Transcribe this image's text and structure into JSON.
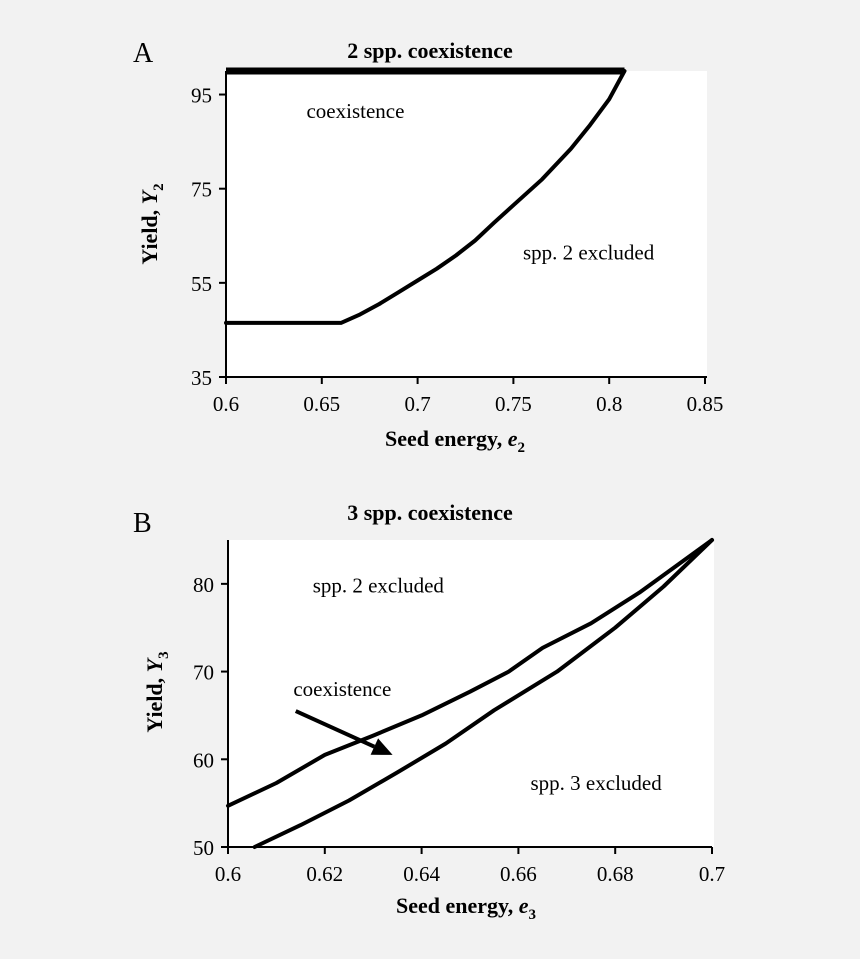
{
  "chart_data": [
    {
      "type": "line",
      "panel_label": "A",
      "title": "2 spp. coexistence",
      "xlabel": "Seed energy, ",
      "xlabel_var": "e",
      "xlabel_sub": "2",
      "ylabel": "Yield, ",
      "ylabel_var": "Y",
      "ylabel_sub": "2",
      "xlim": [
        0.6,
        0.85
      ],
      "ylim": [
        35,
        100
      ],
      "xticks": [
        0.6,
        0.65,
        0.7,
        0.75,
        0.8,
        0.85
      ],
      "xtick_labels": [
        "0.6",
        "0.65",
        "0.7",
        "0.75",
        "0.8",
        "0.85"
      ],
      "yticks": [
        35,
        55,
        75,
        95
      ],
      "ytick_labels": [
        "35",
        "55",
        "75",
        "95"
      ],
      "series": [
        {
          "name": "boundary",
          "x": [
            0.6,
            0.66,
            0.67,
            0.68,
            0.69,
            0.7,
            0.71,
            0.72,
            0.73,
            0.74,
            0.75,
            0.765,
            0.78,
            0.79,
            0.8,
            0.808
          ],
          "y": [
            46.5,
            46.5,
            48.3,
            50.5,
            53.0,
            55.5,
            58.0,
            60.8,
            64.0,
            67.8,
            71.5,
            77.0,
            83.5,
            88.5,
            94.0,
            100
          ]
        },
        {
          "name": "upper-limit",
          "x": [
            0.6,
            0.808
          ],
          "y": [
            100,
            100
          ]
        }
      ],
      "annotations": [
        {
          "text": "coexistence",
          "x": 0.642,
          "y": 90
        },
        {
          "text": "spp. 2 excluded",
          "x": 0.755,
          "y": 60
        }
      ]
    },
    {
      "type": "line",
      "panel_label": "B",
      "title": "3 spp. coexistence",
      "xlabel": "Seed energy, ",
      "xlabel_var": "e",
      "xlabel_sub": "3",
      "ylabel": "Yield, ",
      "ylabel_var": "Y",
      "ylabel_sub": "3",
      "xlim": [
        0.6,
        0.7
      ],
      "ylim": [
        50,
        85
      ],
      "xticks": [
        0.6,
        0.62,
        0.64,
        0.66,
        0.68,
        0.7
      ],
      "xtick_labels": [
        "0.6",
        "0.62",
        "0.64",
        "0.66",
        "0.68",
        "0.7"
      ],
      "yticks": [
        50,
        60,
        70,
        80
      ],
      "ytick_labels": [
        "50",
        "60",
        "70",
        "80"
      ],
      "series": [
        {
          "name": "upper-boundary",
          "x": [
            0.6,
            0.61,
            0.62,
            0.63,
            0.64,
            0.65,
            0.658,
            0.665,
            0.675,
            0.685,
            0.7
          ],
          "y": [
            54.7,
            57.3,
            60.5,
            62.7,
            65.0,
            67.7,
            70.0,
            72.7,
            75.5,
            79.0,
            85.0
          ]
        },
        {
          "name": "lower-boundary",
          "x": [
            0.6055,
            0.615,
            0.625,
            0.635,
            0.645,
            0.655,
            0.668,
            0.68,
            0.69,
            0.7
          ],
          "y": [
            50.0,
            52.5,
            55.3,
            58.5,
            61.8,
            65.6,
            70.0,
            75.0,
            79.7,
            85.0
          ]
        }
      ],
      "annotations": [
        {
          "text": "spp. 2 excluded",
          "x": 0.6175,
          "y": 79
        },
        {
          "text": "coexistence",
          "x": 0.6135,
          "y": 67.2
        },
        {
          "text": "spp. 3 excluded",
          "x": 0.6625,
          "y": 56.5
        }
      ],
      "arrow": {
        "from": [
          0.614,
          65.5
        ],
        "to": [
          0.634,
          60.5
        ]
      }
    }
  ]
}
